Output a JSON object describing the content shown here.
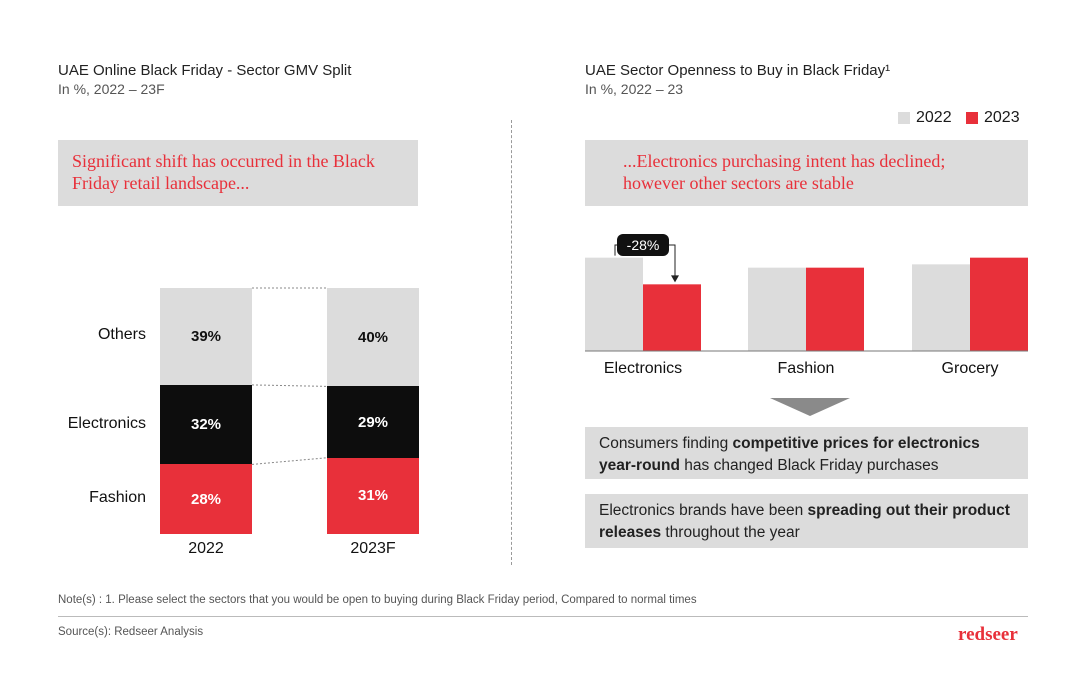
{
  "left": {
    "title": "UAE Online Black Friday - Sector GMV Split",
    "subtitle": "In %, 2022 – 23F",
    "callout": "Significant shift has occurred in the Black Friday retail landscape..."
  },
  "right": {
    "title": "UAE Sector Openness to Buy in Black Friday¹",
    "subtitle": "In %, 2022 – 23",
    "callout": "...Electronics purchasing intent has declined; however other sectors are stable",
    "change_label": "-28%",
    "insights": [
      {
        "pre": "Consumers finding ",
        "bold": "competitive prices for electronics year-round",
        "post": " has changed Black Friday purchases"
      },
      {
        "pre": "Electronics brands have been ",
        "bold": "spreading out their product releases",
        "post": " throughout the year"
      }
    ]
  },
  "colors": {
    "grey": "#dcdcdc",
    "black": "#0d0d0d",
    "red": "#e8303a"
  },
  "chart_data": [
    {
      "type": "bar",
      "stacked": true,
      "title": "UAE Online Black Friday - Sector GMV Split",
      "categories": [
        "2022",
        "2023F"
      ],
      "series": [
        {
          "name": "Fashion",
          "values": [
            28,
            31
          ],
          "labels": [
            "28%",
            "31%"
          ],
          "color": "#e8303a",
          "text_color": "#ffffff"
        },
        {
          "name": "Electronics",
          "values": [
            32,
            29
          ],
          "labels": [
            "32%",
            "29%"
          ],
          "color": "#0d0d0d",
          "text_color": "#ffffff"
        },
        {
          "name": "Others",
          "values": [
            39,
            40
          ],
          "labels": [
            "39%",
            "40%"
          ],
          "color": "#dcdcdc",
          "text_color": "#111111"
        }
      ],
      "ylim": [
        0,
        100
      ]
    },
    {
      "type": "bar",
      "title": "UAE Sector Openness to Buy in Black Friday¹",
      "categories": [
        "Electronics",
        "Fashion",
        "Grocery"
      ],
      "series": [
        {
          "name": "2022",
          "values": [
            56,
            50,
            52
          ],
          "color": "#dcdcdc"
        },
        {
          "name": "2023",
          "values": [
            40,
            50,
            56
          ],
          "color": "#e8303a"
        }
      ],
      "ylim": [
        0,
        60
      ],
      "legend": "top-right"
    }
  ],
  "footer": {
    "note": "Note(s) : 1. Please select the sectors that you would be open to buying during Black Friday period, Compared to normal times",
    "source": "Source(s): Redseer Analysis",
    "brand": "redseer"
  }
}
